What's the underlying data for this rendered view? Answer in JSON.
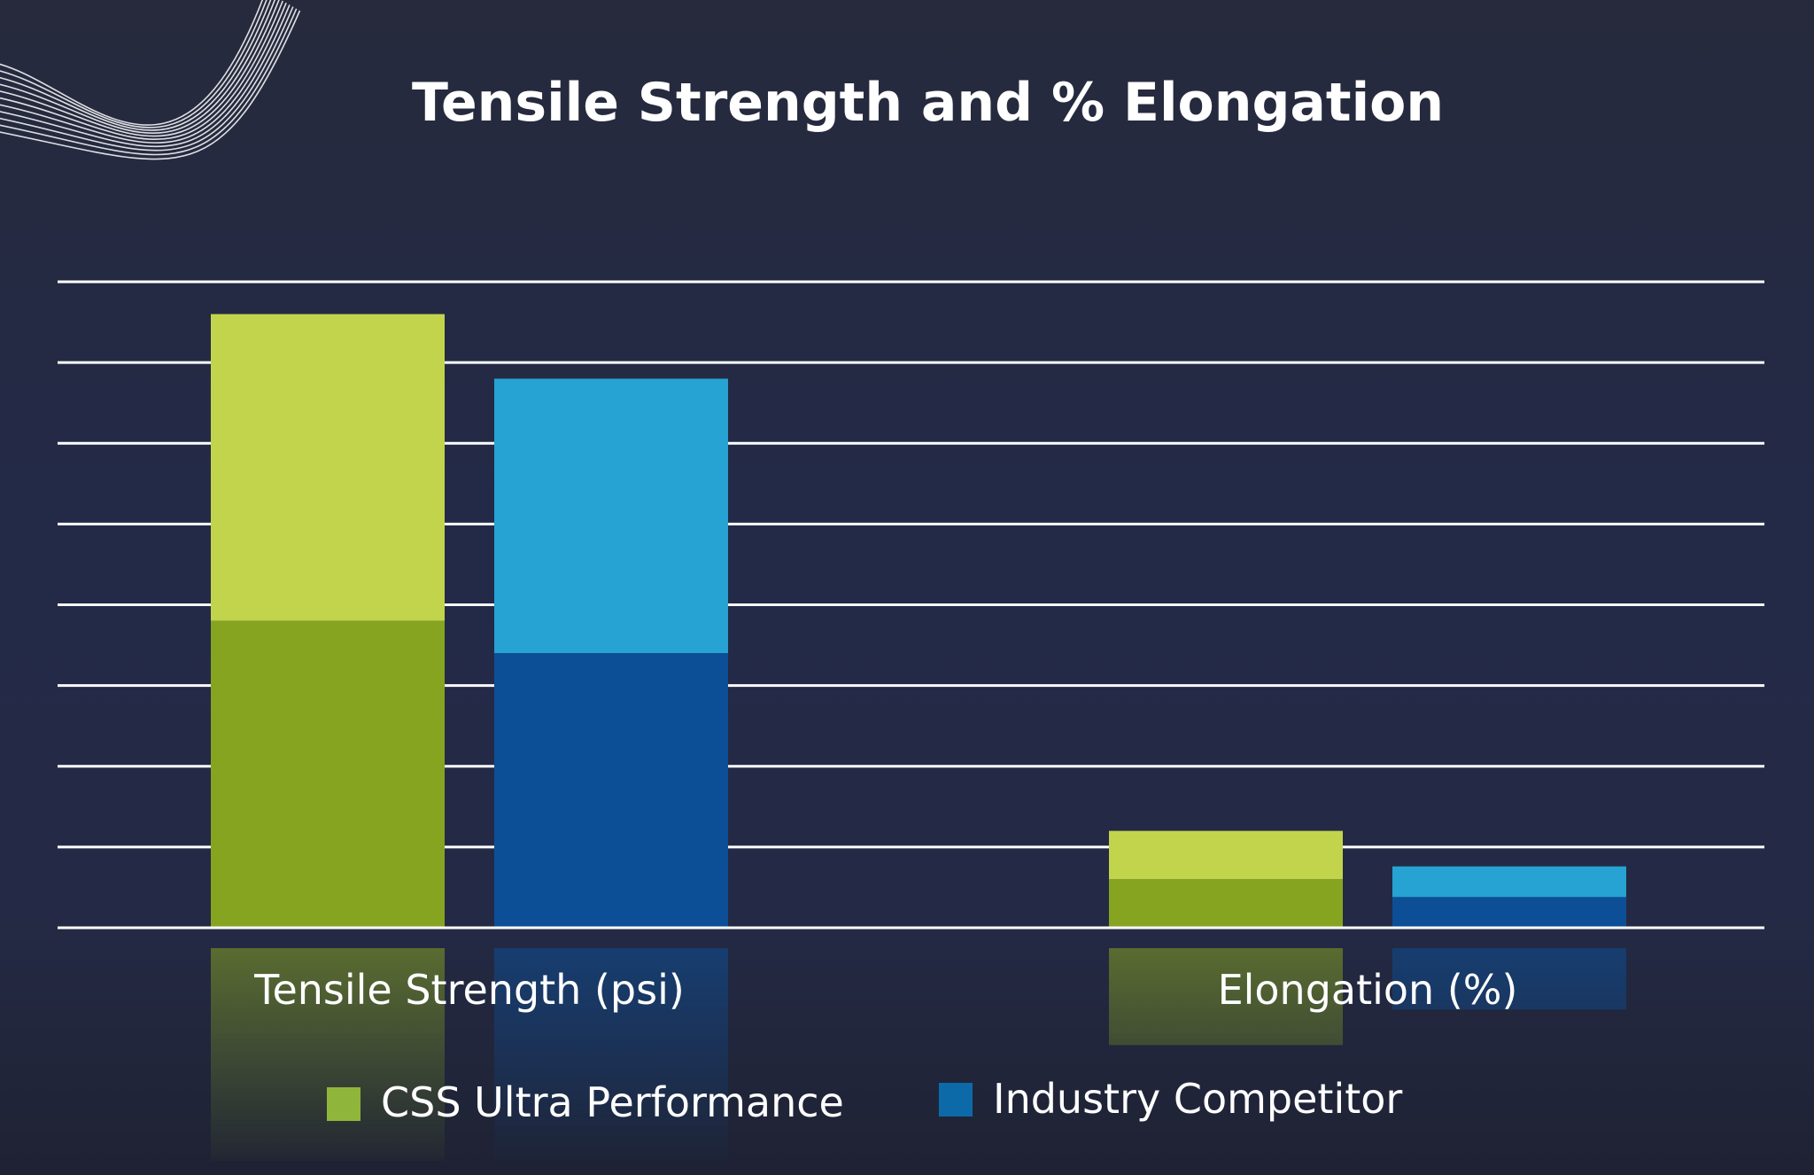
{
  "chart_data": {
    "type": "bar",
    "title": "Tensile Strength and % Elongation",
    "categories": [
      "Tensile Strength (psi)",
      "Elongation (%)"
    ],
    "series": [
      {
        "name": "CSS Ultra Performance",
        "values": [
          7.6,
          1.2
        ]
      },
      {
        "name": "Industry Competitor",
        "values": [
          6.8,
          0.76
        ]
      }
    ],
    "ylim": [
      0,
      8
    ],
    "grid": true,
    "legend_position": "bottom",
    "colors": {
      "css_top": "#c2d44c",
      "css_bottom": "#87a421",
      "competitor_top": "#26a3d2",
      "competitor_bottom": "#0d4f96",
      "background": "#232a48",
      "gridline": "#ffffff"
    }
  }
}
